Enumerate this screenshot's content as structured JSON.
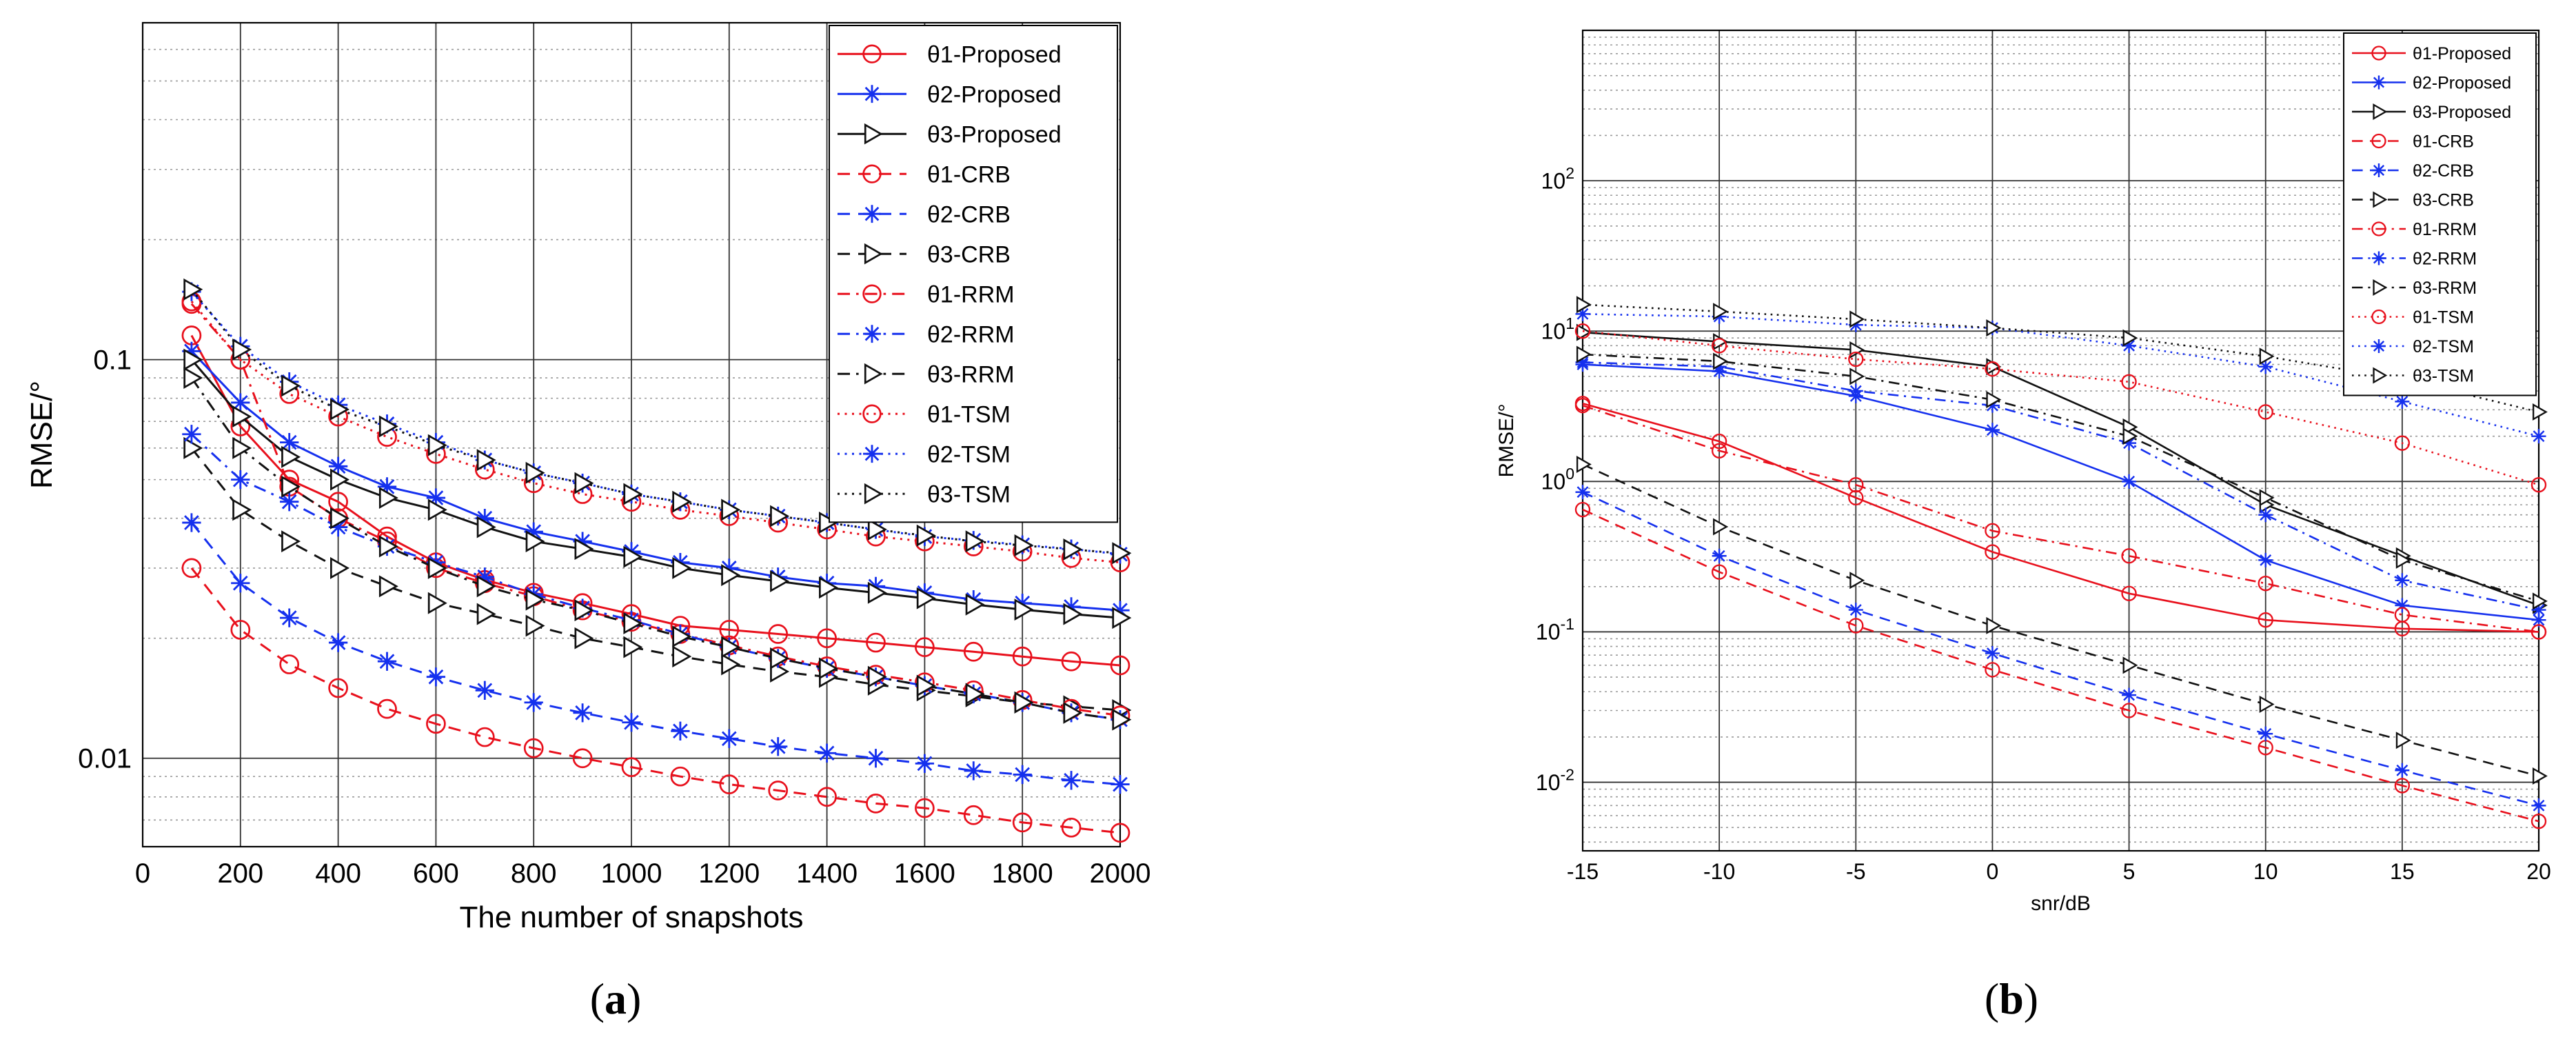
{
  "panels": [
    {
      "label": "a"
    },
    {
      "label": "b"
    }
  ],
  "colors": {
    "red": "#e8101c",
    "blue": "#1530ee",
    "black": "#111111"
  },
  "chart_data": [
    {
      "type": "line",
      "panel": "a",
      "xlabel": "The number of snapshots",
      "ylabel": "RMSE/°",
      "xscale": "linear",
      "yscale": "log",
      "xlim": [
        0,
        2000
      ],
      "ylim": [
        0.006,
        0.7
      ],
      "xticks": [
        0,
        200,
        400,
        600,
        800,
        1000,
        1200,
        1400,
        1600,
        1800,
        2000
      ],
      "yticks": [
        0.01,
        0.1
      ],
      "ytick_labels": [
        "0.01",
        "0.1"
      ],
      "grid": true,
      "legend_position": "top-right",
      "x": [
        100,
        200,
        300,
        400,
        500,
        600,
        700,
        800,
        900,
        1000,
        1100,
        1200,
        1300,
        1400,
        1500,
        1600,
        1700,
        1800,
        1900,
        2000
      ],
      "series": [
        {
          "name": "θ1-Proposed",
          "color": "red",
          "dash": "solid",
          "marker": "circle",
          "values": [
            0.115,
            0.068,
            0.05,
            0.044,
            0.036,
            0.031,
            0.028,
            0.026,
            0.0245,
            0.023,
            0.0215,
            0.021,
            0.0205,
            0.02,
            0.0195,
            0.019,
            0.0185,
            0.018,
            0.0175,
            0.0171
          ]
        },
        {
          "name": "θ2-Proposed",
          "color": "blue",
          "dash": "solid",
          "marker": "star",
          "values": [
            0.105,
            0.078,
            0.062,
            0.054,
            0.048,
            0.045,
            0.04,
            0.037,
            0.035,
            0.033,
            0.031,
            0.03,
            0.0285,
            0.0275,
            0.027,
            0.026,
            0.025,
            0.0245,
            0.024,
            0.0235
          ]
        },
        {
          "name": "θ3-Proposed",
          "color": "black",
          "dash": "solid",
          "marker": "triangle",
          "values": [
            0.1,
            0.072,
            0.057,
            0.05,
            0.045,
            0.042,
            0.038,
            0.035,
            0.0335,
            0.032,
            0.03,
            0.0288,
            0.0278,
            0.0268,
            0.026,
            0.0252,
            0.0243,
            0.0236,
            0.023,
            0.0225
          ]
        },
        {
          "name": "θ1-CRB",
          "color": "red",
          "dash": "dashed",
          "marker": "circle",
          "values": [
            0.03,
            0.021,
            0.0172,
            0.015,
            0.0133,
            0.0122,
            0.0113,
            0.0106,
            0.01,
            0.0095,
            0.009,
            0.0086,
            0.0083,
            0.008,
            0.0077,
            0.0075,
            0.0072,
            0.0069,
            0.0067,
            0.0065
          ]
        },
        {
          "name": "θ2-CRB",
          "color": "blue",
          "dash": "dashed",
          "marker": "star",
          "values": [
            0.039,
            0.0275,
            0.0225,
            0.0195,
            0.0175,
            0.016,
            0.0148,
            0.0138,
            0.013,
            0.0123,
            0.0117,
            0.0112,
            0.0107,
            0.0103,
            0.01,
            0.0097,
            0.0093,
            0.0091,
            0.0088,
            0.0086
          ]
        },
        {
          "name": "θ3-CRB",
          "color": "black",
          "dash": "dashed",
          "marker": "triangle",
          "values": [
            0.06,
            0.042,
            0.035,
            0.03,
            0.027,
            0.0245,
            0.023,
            0.0215,
            0.02,
            0.019,
            0.018,
            0.0172,
            0.0165,
            0.016,
            0.0153,
            0.0148,
            0.0143,
            0.0138,
            0.0135,
            0.0132
          ]
        },
        {
          "name": "θ1-RRM",
          "color": "red",
          "dash": "dashdot",
          "marker": "circle",
          "values": [
            0.138,
            0.1,
            0.048,
            0.04,
            0.035,
            0.03,
            0.0275,
            0.0255,
            0.0235,
            0.022,
            0.0205,
            0.0192,
            0.018,
            0.017,
            0.0162,
            0.0155,
            0.0148,
            0.014,
            0.0133,
            0.0128
          ]
        },
        {
          "name": "θ2-RRM",
          "color": "blue",
          "dash": "dashdot",
          "marker": "star",
          "values": [
            0.065,
            0.05,
            0.044,
            0.038,
            0.034,
            0.031,
            0.0285,
            0.0258,
            0.0238,
            0.0222,
            0.0205,
            0.019,
            0.0178,
            0.0168,
            0.016,
            0.0152,
            0.0145,
            0.0138,
            0.013,
            0.0125
          ]
        },
        {
          "name": "θ3-RRM",
          "color": "black",
          "dash": "dashdot",
          "marker": "triangle",
          "values": [
            0.09,
            0.06,
            0.048,
            0.04,
            0.034,
            0.03,
            0.027,
            0.025,
            0.0235,
            0.0218,
            0.0202,
            0.019,
            0.0178,
            0.0168,
            0.016,
            0.0152,
            0.0145,
            0.0138,
            0.013,
            0.0125
          ]
        },
        {
          "name": "θ1-TSM",
          "color": "red",
          "dash": "dotted",
          "marker": "circle",
          "values": [
            0.14,
            0.1,
            0.082,
            0.072,
            0.064,
            0.058,
            0.053,
            0.049,
            0.046,
            0.044,
            0.042,
            0.0405,
            0.039,
            0.0375,
            0.036,
            0.035,
            0.034,
            0.033,
            0.0318,
            0.031
          ]
        },
        {
          "name": "θ2-TSM",
          "color": "blue",
          "dash": "dotted",
          "marker": "star",
          "values": [
            0.148,
            0.108,
            0.088,
            0.077,
            0.069,
            0.062,
            0.056,
            0.052,
            0.049,
            0.046,
            0.044,
            0.042,
            0.0405,
            0.039,
            0.0375,
            0.036,
            0.0352,
            0.0343,
            0.0335,
            0.0325
          ]
        },
        {
          "name": "θ3-TSM",
          "color": "black",
          "dash": "dotted",
          "marker": "triangle",
          "values": [
            0.15,
            0.106,
            0.086,
            0.075,
            0.068,
            0.061,
            0.056,
            0.052,
            0.049,
            0.046,
            0.044,
            0.042,
            0.0405,
            0.039,
            0.0375,
            0.0362,
            0.035,
            0.0342,
            0.0334,
            0.0327
          ]
        }
      ]
    },
    {
      "type": "line",
      "panel": "b",
      "xlabel": "snr/dB",
      "ylabel": "RMSE/°",
      "xscale": "linear",
      "yscale": "log",
      "xlim": [
        -15,
        20
      ],
      "ylim": [
        0.0035,
        1000
      ],
      "xticks": [
        -15,
        -10,
        -5,
        0,
        5,
        10,
        15,
        20
      ],
      "yticks": [
        0.01,
        0.1,
        1,
        10,
        100
      ],
      "ytick_labels": [
        "10^-2",
        "10^-1",
        "10^0",
        "10^1",
        "10^2"
      ],
      "grid": true,
      "legend_position": "top-right",
      "x": [
        -15,
        -10,
        -5,
        0,
        5,
        10,
        15,
        20
      ],
      "series": [
        {
          "name": "θ1-Proposed",
          "color": "red",
          "dash": "solid",
          "marker": "circle",
          "values": [
            3.3,
            1.85,
            0.78,
            0.34,
            0.18,
            0.12,
            0.105,
            0.1
          ]
        },
        {
          "name": "θ2-Proposed",
          "color": "blue",
          "dash": "solid",
          "marker": "star",
          "values": [
            6.0,
            5.4,
            3.7,
            2.2,
            1.0,
            0.3,
            0.15,
            0.12
          ]
        },
        {
          "name": "θ3-Proposed",
          "color": "black",
          "dash": "solid",
          "marker": "triangle",
          "values": [
            9.8,
            8.5,
            7.5,
            5.8,
            2.3,
            0.7,
            0.32,
            0.15
          ]
        },
        {
          "name": "θ1-CRB",
          "color": "red",
          "dash": "dashed",
          "marker": "circle",
          "values": [
            0.65,
            0.25,
            0.11,
            0.056,
            0.03,
            0.017,
            0.0095,
            0.0055
          ]
        },
        {
          "name": "θ2-CRB",
          "color": "blue",
          "dash": "dashed",
          "marker": "star",
          "values": [
            0.85,
            0.32,
            0.14,
            0.072,
            0.038,
            0.021,
            0.012,
            0.007
          ]
        },
        {
          "name": "θ3-CRB",
          "color": "black",
          "dash": "dashed",
          "marker": "triangle",
          "values": [
            1.3,
            0.5,
            0.22,
            0.11,
            0.06,
            0.033,
            0.019,
            0.011
          ]
        },
        {
          "name": "θ1-RRM",
          "color": "red",
          "dash": "dashdot",
          "marker": "circle",
          "values": [
            3.2,
            1.6,
            0.95,
            0.47,
            0.32,
            0.21,
            0.13,
            0.1
          ]
        },
        {
          "name": "θ2-RRM",
          "color": "blue",
          "dash": "dashdot",
          "marker": "star",
          "values": [
            6.2,
            5.8,
            4.0,
            3.2,
            1.8,
            0.6,
            0.22,
            0.14
          ]
        },
        {
          "name": "θ3-RRM",
          "color": "black",
          "dash": "dashdot",
          "marker": "triangle",
          "values": [
            7.0,
            6.3,
            5.0,
            3.5,
            2.0,
            0.78,
            0.3,
            0.16
          ]
        },
        {
          "name": "θ1-TSM",
          "color": "red",
          "dash": "dotted",
          "marker": "circle",
          "values": [
            10.0,
            8.0,
            6.5,
            5.6,
            4.6,
            2.9,
            1.8,
            0.95
          ]
        },
        {
          "name": "θ2-TSM",
          "color": "blue",
          "dash": "dotted",
          "marker": "star",
          "values": [
            13.0,
            12.5,
            11.0,
            10.5,
            8.0,
            5.8,
            3.4,
            2.0
          ]
        },
        {
          "name": "θ3-TSM",
          "color": "black",
          "dash": "dotted",
          "marker": "triangle",
          "values": [
            15.0,
            13.5,
            12.0,
            10.5,
            9.0,
            6.8,
            4.8,
            2.9
          ]
        }
      ]
    }
  ]
}
